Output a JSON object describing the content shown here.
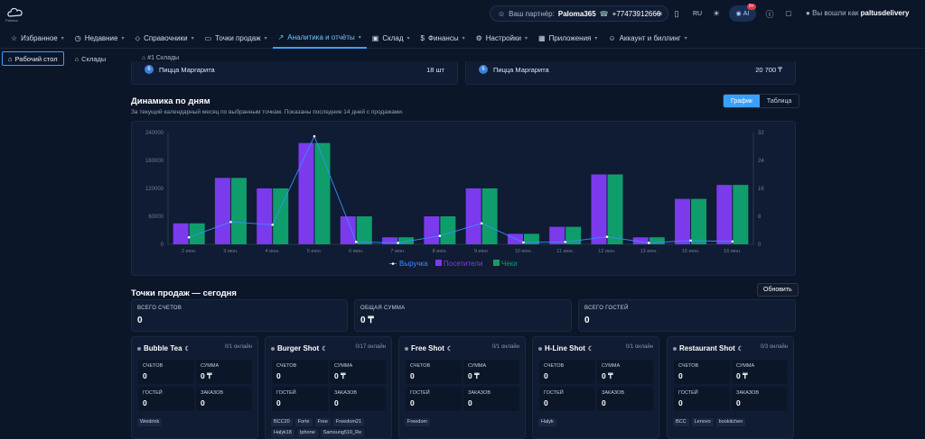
{
  "header": {
    "logo_text": "Paloma",
    "partner_label": "Ваш партнёр:",
    "partner_name": "Paloma365",
    "partner_phone": "+77473912666",
    "lang": "RU",
    "ai_label": "AI",
    "ai_badge": "9+",
    "user_label": "Вы вошли как",
    "user_name": "paltusdelivery"
  },
  "nav": [
    {
      "label": "Избранное",
      "icon": "star-icon"
    },
    {
      "label": "Недавние",
      "icon": "clock-icon"
    },
    {
      "label": "Справочники",
      "icon": "tag-icon"
    },
    {
      "label": "Точки продаж",
      "icon": "monitor-icon"
    },
    {
      "label": "Аналитика и отчёты",
      "icon": "chart-icon",
      "active": true
    },
    {
      "label": "Склад",
      "icon": "box-icon"
    },
    {
      "label": "Финансы",
      "icon": "dollar-icon"
    },
    {
      "label": "Настройки",
      "icon": "gear-icon"
    },
    {
      "label": "Приложения",
      "icon": "apps-icon"
    },
    {
      "label": "Аккаунт и биллинг",
      "icon": "user-icon"
    }
  ],
  "tabs": [
    {
      "label": "Рабочий стол",
      "active": true
    },
    {
      "label": "Склады"
    }
  ],
  "breadcrumb": "#1 Склады",
  "top_products": [
    {
      "num": "6",
      "name": "Пицца Маргарита",
      "value": "18 шт"
    },
    {
      "num": "6",
      "name": "Пицца Маргарита",
      "value": "20 700 ₸"
    }
  ],
  "dynamics": {
    "title": "Динамика по дням",
    "subtitle": "За текущий календарный месяц по выбранным точкам. Показаны последние 14 дней с продажами.",
    "view_chart": "График",
    "view_table": "Таблица"
  },
  "chart_data": {
    "type": "bar",
    "categories": [
      "2 июн.",
      "3 июн.",
      "4 июн.",
      "5 июн.",
      "6 июн.",
      "7 июн.",
      "8 июн.",
      "9 июн.",
      "10 июн.",
      "11 июн.",
      "12 июн.",
      "13 июн.",
      "15 июн.",
      "16 июн."
    ],
    "series": [
      {
        "name": "Выручка",
        "kind": "line",
        "axis": "left",
        "color": "#3b8cff",
        "values": [
          15000,
          48000,
          42000,
          232000,
          5000,
          3000,
          18000,
          45000,
          4000,
          5000,
          16000,
          3000,
          8000,
          6000
        ]
      },
      {
        "name": "Посетители",
        "kind": "bar",
        "axis": "right",
        "color": "#7c3aed",
        "values": [
          6,
          19,
          16,
          29,
          8,
          2,
          8,
          16,
          3,
          5,
          20,
          2,
          13,
          17
        ]
      },
      {
        "name": "Чеки",
        "kind": "bar",
        "axis": "right",
        "color": "#0f9d6c",
        "values": [
          6,
          19,
          16,
          29,
          8,
          2,
          8,
          16,
          3,
          5,
          20,
          2,
          13,
          17
        ]
      }
    ],
    "y_left": {
      "ticks": [
        "0",
        "60000",
        "120000",
        "180000",
        "240000"
      ],
      "range": [
        0,
        240000
      ]
    },
    "y_right": {
      "ticks": [
        "0",
        "8",
        "16",
        "24",
        "32"
      ],
      "range": [
        0,
        32
      ]
    },
    "legend_position": "bottom",
    "grid": false
  },
  "pos": {
    "title": "Точки продаж — сегодня",
    "refresh": "Обновить",
    "summary": [
      {
        "label": "ВСЕГО СЧЕТОВ",
        "value": "0"
      },
      {
        "label": "ОБЩАЯ СУММА",
        "value": "0 ₸"
      },
      {
        "label": "ВСЕГО ГОСТЕЙ",
        "value": "0"
      }
    ],
    "labels": {
      "checks": "СЧЕТОВ",
      "sum": "СУММА",
      "guests": "ГОСТЕЙ",
      "orders": "ЗАКАЗОВ"
    },
    "shops": [
      {
        "name": "Bubble Tea",
        "online": "0/1 онлайн",
        "checks": "0",
        "sum": "0 ₸",
        "guests": "0",
        "orders": "0",
        "tags": [
          "Weidrink"
        ]
      },
      {
        "name": "Burger Shot",
        "online": "0/17 онлайн",
        "checks": "0",
        "sum": "0 ₸",
        "guests": "0",
        "orders": "0",
        "tags": [
          "BCC20",
          "Forte",
          "Free",
          "Freedom21",
          "Halyk18",
          "Iphone",
          "Samsung510_Re"
        ]
      },
      {
        "name": "Free Shot",
        "online": "0/1 онлайн",
        "checks": "0",
        "sum": "0 ₸",
        "guests": "0",
        "orders": "0",
        "tags": [
          "Freedom"
        ]
      },
      {
        "name": "H-Line Shot",
        "online": "0/1 онлайн",
        "checks": "0",
        "sum": "0 ₸",
        "guests": "0",
        "orders": "0",
        "tags": [
          "Halyk"
        ]
      },
      {
        "name": "Restaurant Shot",
        "online": "0/3 онлайн",
        "checks": "0",
        "sum": "0 ₸",
        "guests": "0",
        "orders": "0",
        "tags": [
          "BCC",
          "Lenovo",
          "bookitchen"
        ]
      }
    ]
  }
}
